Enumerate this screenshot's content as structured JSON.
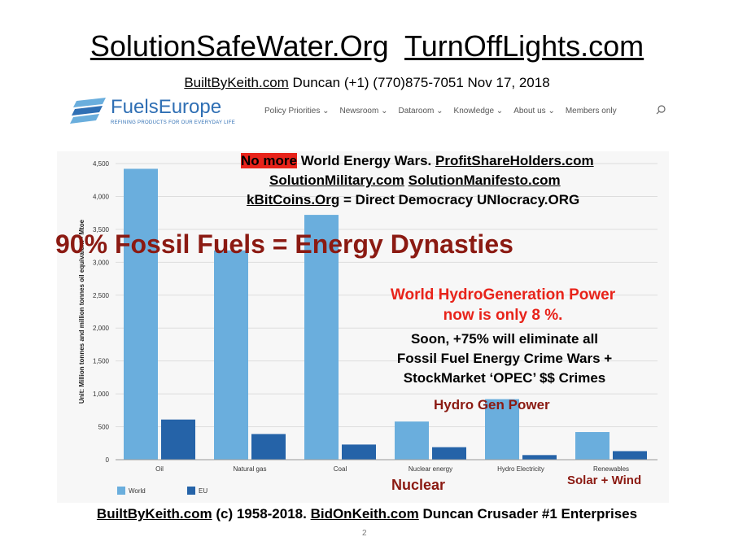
{
  "header": {
    "link1": "SolutionSafeWater.Org",
    "link2": "TurnOffLights.com"
  },
  "subheader": {
    "link": "BuiltByKeith.com",
    "text": " Duncan (+1) (770)875-7051  Nov 17, 2018"
  },
  "site": {
    "brand": "FuelsEurope",
    "tagline": "REFINING PRODUCTS FOR OUR EVERYDAY LIFE",
    "nav": [
      "Policy Priorities ⌄",
      "Newsroom ⌄",
      "Dataroom ⌄",
      "Knowledge ⌄",
      "About us ⌄",
      "Members only"
    ],
    "brand_color": "#2f6fb4"
  },
  "overlay": {
    "no_more": "No more",
    "line1_rest": " World Energy Wars. ",
    "line1_link": "ProfitShareHolders.com",
    "line2_link1": "SolutionMilitary.com",
    "line2_link2": "SolutionManifesto.com",
    "line3_link": "kBitCoins.Org",
    "line3_rest": "  =  Direct Democracy UNIocracy.ORG",
    "big_red": "90% Fossil Fuels = Energy Dynasties",
    "hydro_line1": "World HydroGeneration Power",
    "hydro_line2": "now is only 8 %.",
    "soon_line1": "Soon, +75% will eliminate all",
    "soon_line2": "Fossil Fuel Energy Crime Wars +",
    "soon_line3": "StockMarket ‘OPEC’ $$  Crimes",
    "hydro_gen": "Hydro Gen Power",
    "nuclear": "Nuclear",
    "solar_wind": "Solar + Wind"
  },
  "footer": {
    "link1": "BuiltByKeith.com",
    "mid": " (c) 1958-2018. ",
    "link2": "BidOnKeith.com",
    "rest": " Duncan Crusader #1 Enterprises"
  },
  "page_number": "2",
  "chart_data": {
    "type": "bar",
    "categories": [
      "Oil",
      "Natural gas",
      "Coal",
      "Nuclear energy",
      "Hydro Electricity",
      "Renewables"
    ],
    "series": [
      {
        "name": "World",
        "values": [
          4420,
          3180,
          3720,
          580,
          920,
          420
        ],
        "color": "#6aaedd"
      },
      {
        "name": "EU",
        "values": [
          610,
          390,
          230,
          190,
          70,
          130
        ],
        "color": "#2563a8"
      }
    ],
    "ylabel": "Unit: Million tonnes and million tonnes oil equivalent - Mtoe",
    "ylim": [
      0,
      4500
    ],
    "yticks": [
      "0",
      "500",
      "1,000",
      "1,500",
      "2,000",
      "2,500",
      "3,000",
      "3,500",
      "4,000",
      "4,500"
    ],
    "grid": true,
    "legend": "bottom-left"
  }
}
